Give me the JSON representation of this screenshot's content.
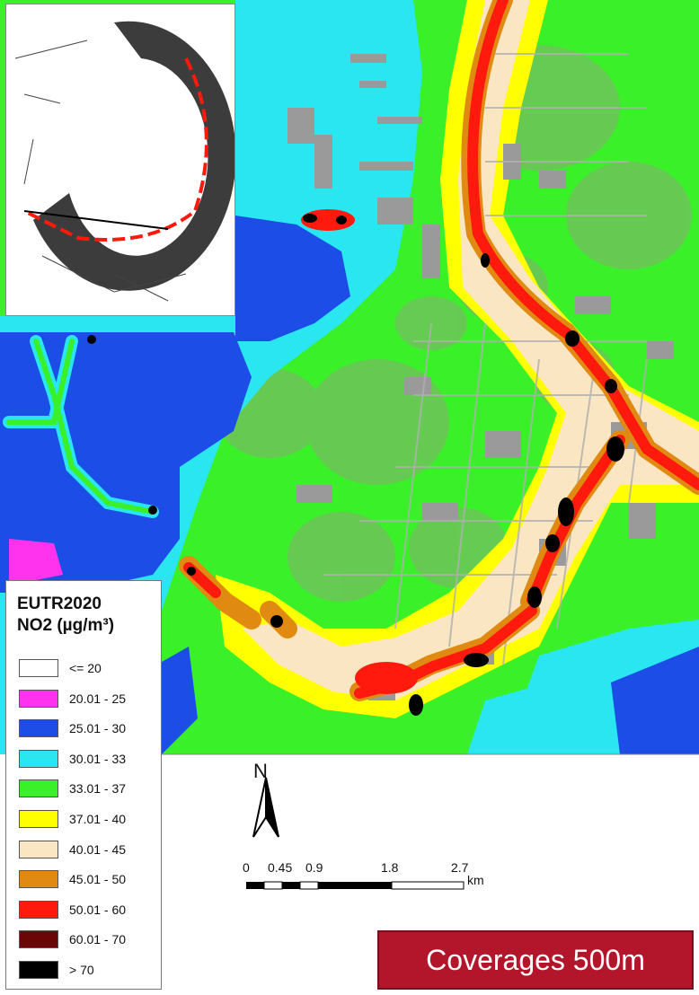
{
  "legend": {
    "title_line1": "EUTR2020",
    "title_line2": "NO2 (µg/m³)",
    "classes": [
      {
        "label": "<= 20",
        "color": "#ffffff"
      },
      {
        "label": "20.01 - 25",
        "color": "#ff33ee"
      },
      {
        "label": "25.01 - 30",
        "color": "#1c4de6"
      },
      {
        "label": "30.01 - 33",
        "color": "#2ae6f0"
      },
      {
        "label": "33.01 - 37",
        "color": "#39f029"
      },
      {
        "label": "37.01 - 40",
        "color": "#ffff00"
      },
      {
        "label": "40.01 - 45",
        "color": "#fae6c2"
      },
      {
        "label": "45.01 - 50",
        "color": "#e08a12"
      },
      {
        "label": "50.01 - 60",
        "color": "#ff1a0d"
      },
      {
        "label": "60.01 - 70",
        "color": "#6a0606"
      },
      {
        "label": "> 70",
        "color": "#000000"
      }
    ]
  },
  "north_arrow": {
    "label": "N"
  },
  "scale_bar": {
    "ticks": [
      "0",
      "0.45",
      "0.9",
      "1.8",
      "2.7"
    ],
    "unit": "km"
  },
  "caption": {
    "text": "Coverages 500m",
    "color": "#b3162b"
  },
  "colors": {
    "buildings": "#9a9a9a",
    "road_hot": "#ff1a0d",
    "road_core": "#000000",
    "water_high": "#1c4de6"
  }
}
